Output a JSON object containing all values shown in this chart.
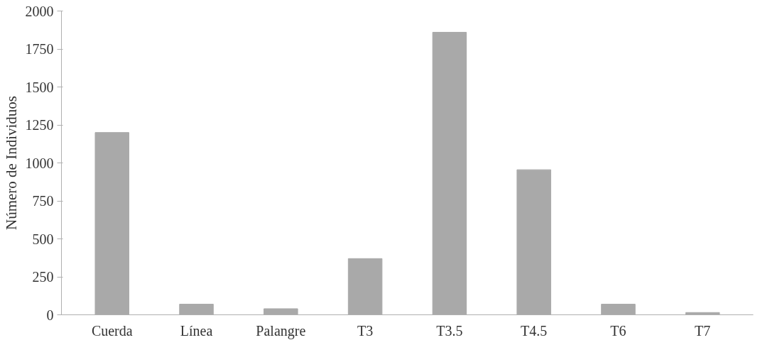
{
  "chart_data": {
    "type": "bar",
    "ylabel": "Número de Individuos",
    "categories": [
      "Cuerda",
      "Línea",
      "Palangre",
      "T3",
      "T3.5",
      "T4.5",
      "T6",
      "T7"
    ],
    "values": [
      1200,
      70,
      40,
      370,
      1860,
      955,
      70,
      15
    ],
    "color": "#a9a9a9",
    "ylim": [
      0,
      2000
    ],
    "yticks": [
      0,
      250,
      500,
      750,
      1000,
      1250,
      1500,
      1750,
      2000
    ],
    "grid": false
  }
}
